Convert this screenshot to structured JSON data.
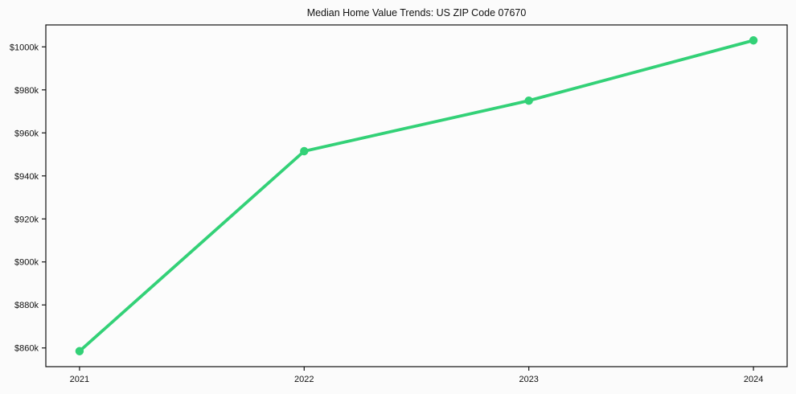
{
  "figure": {
    "background": "#fbfbfb",
    "plot_background": "#fcfcfc",
    "axis_color": "#111111",
    "text_color": "#111111"
  },
  "chart_data": {
    "type": "line",
    "title": "Median Home Value Trends: US ZIP Code 07670",
    "xlabel": "",
    "ylabel": "",
    "x": [
      2021,
      2022,
      2023,
      2024
    ],
    "x_tick_labels": [
      "2021",
      "2022",
      "2023",
      "2024"
    ],
    "series": [
      {
        "name": "median_home_value_usd",
        "values": [
          858500,
          951500,
          975000,
          1003000
        ],
        "color": "#33d177",
        "marker": "circle",
        "line_width": 3.8,
        "marker_radius": 5.2
      }
    ],
    "y_ticks": [
      {
        "value": 860000,
        "label": "$860k"
      },
      {
        "value": 880000,
        "label": "$880k"
      },
      {
        "value": 900000,
        "label": "$900k"
      },
      {
        "value": 920000,
        "label": "$920k"
      },
      {
        "value": 940000,
        "label": "$940k"
      },
      {
        "value": 960000,
        "label": "$960k"
      },
      {
        "value": 980000,
        "label": "$980k"
      },
      {
        "value": 1000000,
        "label": "$1000k"
      }
    ],
    "xlim": [
      2020.85,
      2024.15
    ],
    "ylim": [
      851300,
      1010200
    ],
    "grid": false,
    "legend": null
  }
}
